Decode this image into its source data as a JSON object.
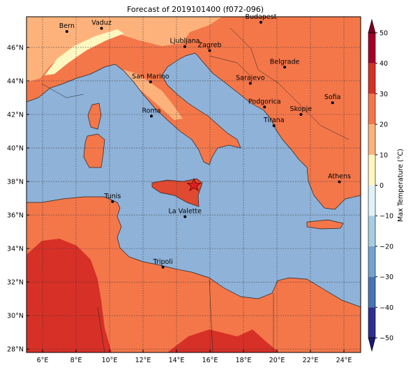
{
  "title": "Forecast of 2019101400 (f072-096)",
  "map": {
    "xlim": [
      5.04,
      25.0
    ],
    "ylim": [
      27.8,
      47.83
    ],
    "grid": true,
    "xticks": [
      {
        "value": 6,
        "label": "6°E"
      },
      {
        "value": 8,
        "label": "8°E"
      },
      {
        "value": 10,
        "label": "10°E"
      },
      {
        "value": 12,
        "label": "12°E"
      },
      {
        "value": 14,
        "label": "14°E"
      },
      {
        "value": 16,
        "label": "16°E"
      },
      {
        "value": 18,
        "label": "18°E"
      },
      {
        "value": 20,
        "label": "20°E"
      },
      {
        "value": 22,
        "label": "22°E"
      },
      {
        "value": 24,
        "label": "24°E"
      }
    ],
    "yticks": [
      {
        "value": 28,
        "label": "28°N"
      },
      {
        "value": 30,
        "label": "30°N"
      },
      {
        "value": 32,
        "label": "32°N"
      },
      {
        "value": 34,
        "label": "34°N"
      },
      {
        "value": 36,
        "label": "36°N"
      },
      {
        "value": 38,
        "label": "38°N"
      },
      {
        "value": 40,
        "label": "40°N"
      },
      {
        "value": 42,
        "label": "42°N"
      },
      {
        "value": 44,
        "label": "44°N"
      },
      {
        "value": 46,
        "label": "46°N"
      }
    ],
    "cities": [
      "Bern",
      "Vaduz",
      "Budapest",
      "Ljubljana",
      "Zagreb",
      "Belgrade",
      "San Marino",
      "Sarajevo",
      "Sofia",
      "Roma",
      "Podgorica",
      "Skopje",
      "Tirana",
      "Athens",
      "Tunis",
      "La Valette",
      "Tripoli"
    ]
  },
  "colorbar": {
    "label": "Max Temperature (°C)",
    "ticks": [
      {
        "value": -50,
        "label": "−50"
      },
      {
        "value": -40,
        "label": "−40"
      },
      {
        "value": -30,
        "label": "−30"
      },
      {
        "value": -20,
        "label": "−20"
      },
      {
        "value": -10,
        "label": "−10"
      },
      0,
      10,
      20,
      30,
      40,
      50
    ],
    "colors": [
      "#2c2f8f",
      "#4575b4",
      "#74a3cd",
      "#a6cde3",
      "#e0f3f8",
      "#fff7c0",
      "#fdb27c",
      "#f4774a",
      "#d73027",
      "#a50026"
    ],
    "under_color": "#1a1a70",
    "over_color": "#7f0020"
  }
}
